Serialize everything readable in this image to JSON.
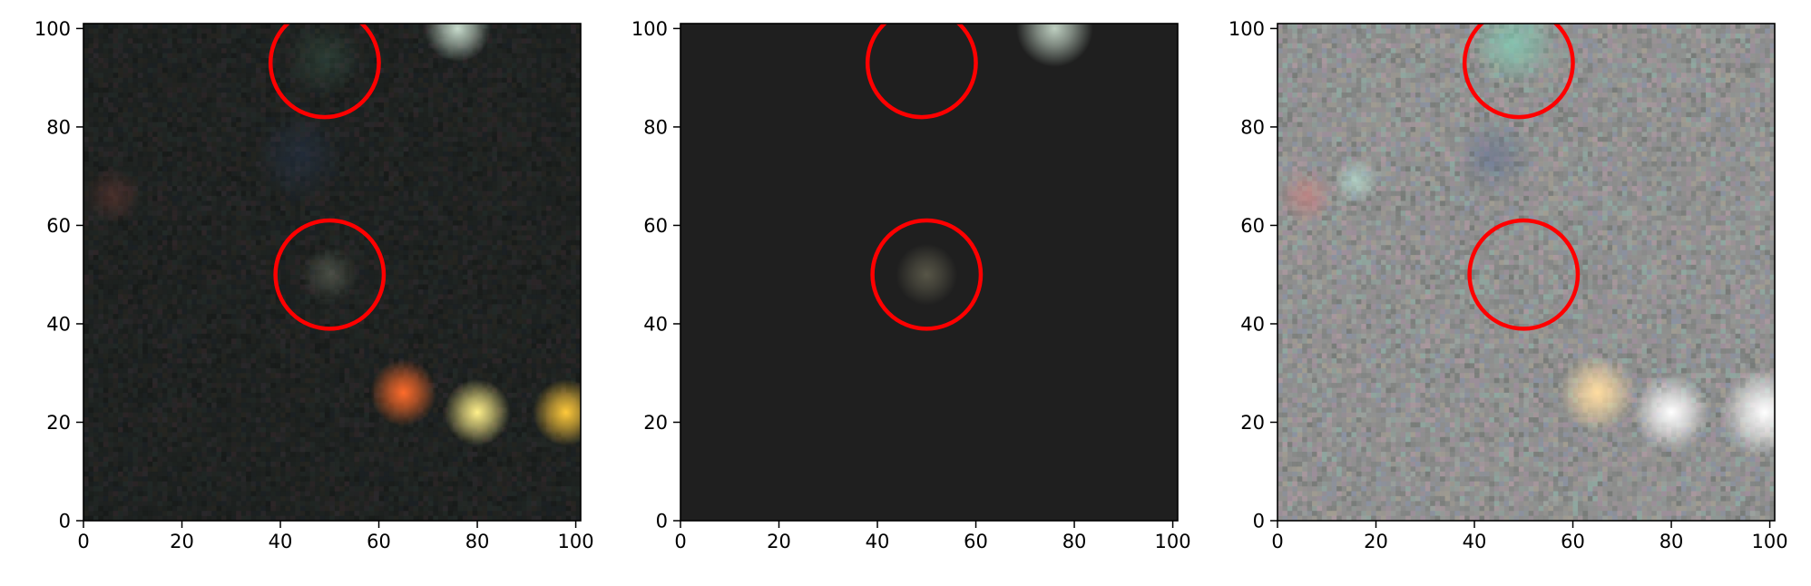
{
  "figure": {
    "panels": [
      {
        "id": "left",
        "style": "rgb-noisy",
        "background": "#1d211f",
        "noise_colors": [
          "#2a2f2c",
          "#141615",
          "#3a2a2f",
          "#26312f",
          "#2f2a22",
          "#1a2028",
          "#352f36"
        ],
        "noise_alpha": 0.55,
        "sources": [
          {
            "name": "faint-center-source",
            "x": 50,
            "y": 50,
            "sigma": 2.2,
            "color": "#7c8270",
            "peak": 0.45
          },
          {
            "name": "top-right-source",
            "x": 76,
            "y": 100,
            "sigma": 2.6,
            "color": "#cfe4d4",
            "peak": 0.95
          },
          {
            "name": "red-source",
            "x": 65,
            "y": 26,
            "sigma": 2.6,
            "color": "#ff6b2a",
            "peak": 1.0
          },
          {
            "name": "yellow-source",
            "x": 80,
            "y": 22,
            "sigma": 2.6,
            "color": "#fff08a",
            "peak": 1.0
          },
          {
            "name": "orange-source-edge",
            "x": 98,
            "y": 22,
            "sigma": 2.6,
            "color": "#ffc93a",
            "peak": 1.0
          },
          {
            "name": "faint-left-red-source",
            "x": 6,
            "y": 66,
            "sigma": 2.2,
            "color": "#6a3a34",
            "peak": 0.55
          },
          {
            "name": "faint-blue-patch",
            "x": 44,
            "y": 74,
            "sigma": 3.5,
            "color": "#2a3a55",
            "peak": 0.45
          },
          {
            "name": "faint-top-green-source",
            "x": 49,
            "y": 94,
            "sigma": 3.0,
            "color": "#3a5a4a",
            "peak": 0.45
          }
        ]
      },
      {
        "id": "middle",
        "style": "model",
        "background": "#1f1f1f",
        "sources": [
          {
            "name": "model-center-source",
            "x": 50,
            "y": 50,
            "sigma": 2.4,
            "color": "#7d7a62",
            "peak": 0.6
          },
          {
            "name": "model-top-right-source",
            "x": 76,
            "y": 100,
            "sigma": 3.0,
            "color": "#cfe2d2",
            "peak": 0.9
          }
        ]
      },
      {
        "id": "right",
        "style": "rgb-stretched",
        "background": "#8f8f8e",
        "noise_colors": [
          "#9fa8a3",
          "#7d8180",
          "#b39ba4",
          "#8fb0a6",
          "#a8a293",
          "#8a93a8",
          "#a38fa0",
          "#6f7470"
        ],
        "noise_alpha": 0.75,
        "sources": [
          {
            "name": "stretched-top-source",
            "x": 48,
            "y": 97,
            "sigma": 3.5,
            "color": "#7fe0c0",
            "peak": 0.6
          },
          {
            "name": "stretched-blue-patch",
            "x": 44,
            "y": 74,
            "sigma": 3.0,
            "color": "#5f6f8f",
            "peak": 0.55
          },
          {
            "name": "stretched-left-red-source",
            "x": 6,
            "y": 66,
            "sigma": 2.2,
            "color": "#d08080",
            "peak": 0.7
          },
          {
            "name": "stretched-left-cyan-source",
            "x": 16,
            "y": 69,
            "sigma": 1.8,
            "color": "#bff0e0",
            "peak": 0.6
          },
          {
            "name": "stretched-orange-source",
            "x": 65,
            "y": 26,
            "sigma": 3.0,
            "color": "#ffdca0",
            "peak": 1.0
          },
          {
            "name": "stretched-white-source",
            "x": 80,
            "y": 22,
            "sigma": 3.0,
            "color": "#ffffff",
            "peak": 1.0
          },
          {
            "name": "stretched-white-source-edge",
            "x": 99,
            "y": 22,
            "sigma": 3.5,
            "color": "#ffffff",
            "peak": 1.0
          }
        ]
      }
    ],
    "axes": {
      "xlim": [
        0,
        101
      ],
      "ylim": [
        0,
        101
      ],
      "xticks": [
        0,
        20,
        40,
        60,
        80,
        100
      ],
      "yticks": [
        0,
        20,
        40,
        60,
        80,
        100
      ],
      "xtick_labels": [
        "0",
        "20",
        "40",
        "60",
        "80",
        "100"
      ],
      "ytick_labels": [
        "0",
        "20",
        "40",
        "60",
        "80",
        "100"
      ]
    },
    "circles": [
      {
        "name": "lower-circle",
        "x": 50,
        "y": 50,
        "r": 11,
        "color": "#ff0000"
      },
      {
        "name": "upper-circle",
        "x": 49,
        "y": 93,
        "r": 11,
        "color": "#ff0000"
      }
    ]
  }
}
